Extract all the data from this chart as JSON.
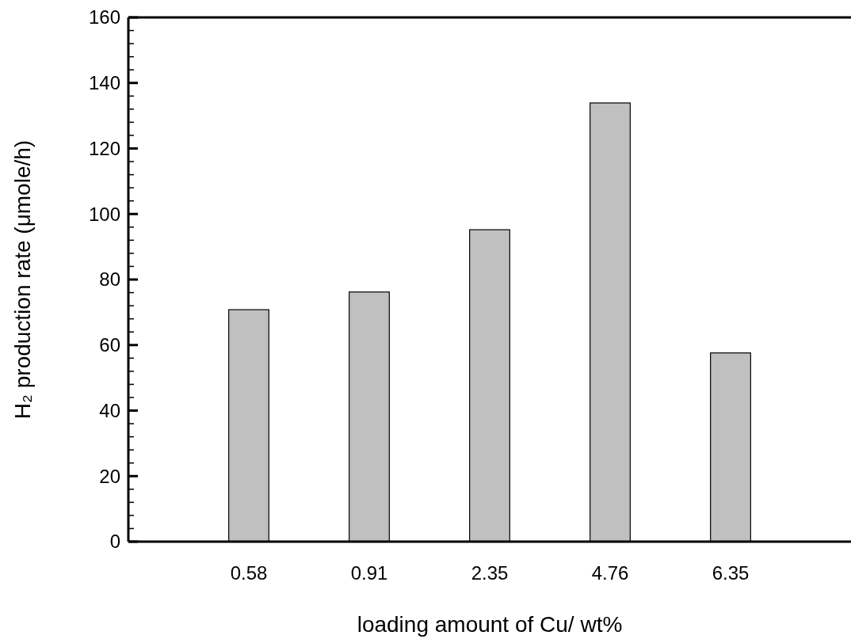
{
  "chart_data": {
    "type": "bar",
    "xlabel": "loading amount of Cu/ wt%",
    "ylabel": "H₂ production rate (μmole/h)",
    "categories": [
      "0.58",
      "0.91",
      "2.35",
      "4.76",
      "6.35"
    ],
    "values": [
      70.8,
      76.2,
      95.2,
      133.9,
      57.6
    ],
    "color": "#c0c0c0",
    "ylim": [
      0,
      160
    ],
    "yticks": [
      0,
      {
        "value": 4,
        "label": null
      },
      {
        "value": 8,
        "label": null
      },
      {
        "value": 12,
        "label": null
      },
      {
        "value": 16,
        "label": null
      },
      20,
      {
        "value": 24,
        "label": null
      },
      {
        "value": 28,
        "label": null
      },
      {
        "value": 32,
        "label": null
      },
      {
        "value": 36,
        "label": null
      },
      40,
      {
        "value": 44,
        "label": null
      },
      {
        "value": 48,
        "label": null
      },
      {
        "value": 52,
        "label": null
      },
      {
        "value": 56,
        "label": null
      },
      60,
      {
        "value": 64,
        "label": null
      },
      {
        "value": 68,
        "label": null
      },
      {
        "value": 72,
        "label": null
      },
      {
        "value": 76,
        "label": null
      },
      80,
      {
        "value": 84,
        "label": null
      },
      {
        "value": 88,
        "label": null
      },
      {
        "value": 92,
        "label": null
      },
      {
        "value": 96,
        "label": null
      },
      100,
      {
        "value": 104,
        "label": null
      },
      {
        "value": 108,
        "label": null
      },
      {
        "value": 112,
        "label": null
      },
      {
        "value": 116,
        "label": null
      },
      120,
      {
        "value": 124,
        "label": null
      },
      {
        "value": 128,
        "label": null
      },
      {
        "value": 132,
        "label": null
      },
      {
        "value": 136,
        "label": null
      },
      140,
      {
        "value": 144,
        "label": null
      },
      {
        "value": 148,
        "label": null
      },
      {
        "value": 152,
        "label": null
      },
      {
        "value": 156,
        "label": null
      },
      160
    ],
    "grid": false
  }
}
